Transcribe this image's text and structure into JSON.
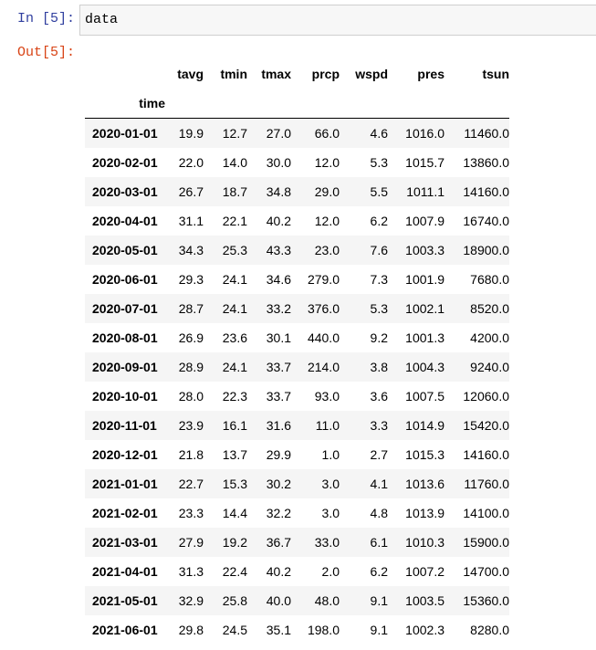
{
  "input_prompt": "In [5]:",
  "output_prompt": "Out[5]:",
  "code": "data",
  "table": {
    "index_name": "time",
    "columns": [
      "tavg",
      "tmin",
      "tmax",
      "prcp",
      "wspd",
      "pres",
      "tsun"
    ],
    "rows": [
      {
        "index": "2020-01-01",
        "values": [
          "19.9",
          "12.7",
          "27.0",
          "66.0",
          "4.6",
          "1016.0",
          "11460.0"
        ]
      },
      {
        "index": "2020-02-01",
        "values": [
          "22.0",
          "14.0",
          "30.0",
          "12.0",
          "5.3",
          "1015.7",
          "13860.0"
        ]
      },
      {
        "index": "2020-03-01",
        "values": [
          "26.7",
          "18.7",
          "34.8",
          "29.0",
          "5.5",
          "1011.1",
          "14160.0"
        ]
      },
      {
        "index": "2020-04-01",
        "values": [
          "31.1",
          "22.1",
          "40.2",
          "12.0",
          "6.2",
          "1007.9",
          "16740.0"
        ]
      },
      {
        "index": "2020-05-01",
        "values": [
          "34.3",
          "25.3",
          "43.3",
          "23.0",
          "7.6",
          "1003.3",
          "18900.0"
        ]
      },
      {
        "index": "2020-06-01",
        "values": [
          "29.3",
          "24.1",
          "34.6",
          "279.0",
          "7.3",
          "1001.9",
          "7680.0"
        ]
      },
      {
        "index": "2020-07-01",
        "values": [
          "28.7",
          "24.1",
          "33.2",
          "376.0",
          "5.3",
          "1002.1",
          "8520.0"
        ]
      },
      {
        "index": "2020-08-01",
        "values": [
          "26.9",
          "23.6",
          "30.1",
          "440.0",
          "9.2",
          "1001.3",
          "4200.0"
        ]
      },
      {
        "index": "2020-09-01",
        "values": [
          "28.9",
          "24.1",
          "33.7",
          "214.0",
          "3.8",
          "1004.3",
          "9240.0"
        ]
      },
      {
        "index": "2020-10-01",
        "values": [
          "28.0",
          "22.3",
          "33.7",
          "93.0",
          "3.6",
          "1007.5",
          "12060.0"
        ]
      },
      {
        "index": "2020-11-01",
        "values": [
          "23.9",
          "16.1",
          "31.6",
          "11.0",
          "3.3",
          "1014.9",
          "15420.0"
        ]
      },
      {
        "index": "2020-12-01",
        "values": [
          "21.8",
          "13.7",
          "29.9",
          "1.0",
          "2.7",
          "1015.3",
          "14160.0"
        ]
      },
      {
        "index": "2021-01-01",
        "values": [
          "22.7",
          "15.3",
          "30.2",
          "3.0",
          "4.1",
          "1013.6",
          "11760.0"
        ]
      },
      {
        "index": "2021-02-01",
        "values": [
          "23.3",
          "14.4",
          "32.2",
          "3.0",
          "4.8",
          "1013.9",
          "14100.0"
        ]
      },
      {
        "index": "2021-03-01",
        "values": [
          "27.9",
          "19.2",
          "36.7",
          "33.0",
          "6.1",
          "1010.3",
          "15900.0"
        ]
      },
      {
        "index": "2021-04-01",
        "values": [
          "31.3",
          "22.4",
          "40.2",
          "2.0",
          "6.2",
          "1007.2",
          "14700.0"
        ]
      },
      {
        "index": "2021-05-01",
        "values": [
          "32.9",
          "25.8",
          "40.0",
          "48.0",
          "9.1",
          "1003.5",
          "15360.0"
        ]
      },
      {
        "index": "2021-06-01",
        "values": [
          "29.8",
          "24.5",
          "35.1",
          "198.0",
          "9.1",
          "1002.3",
          "8280.0"
        ]
      }
    ]
  }
}
